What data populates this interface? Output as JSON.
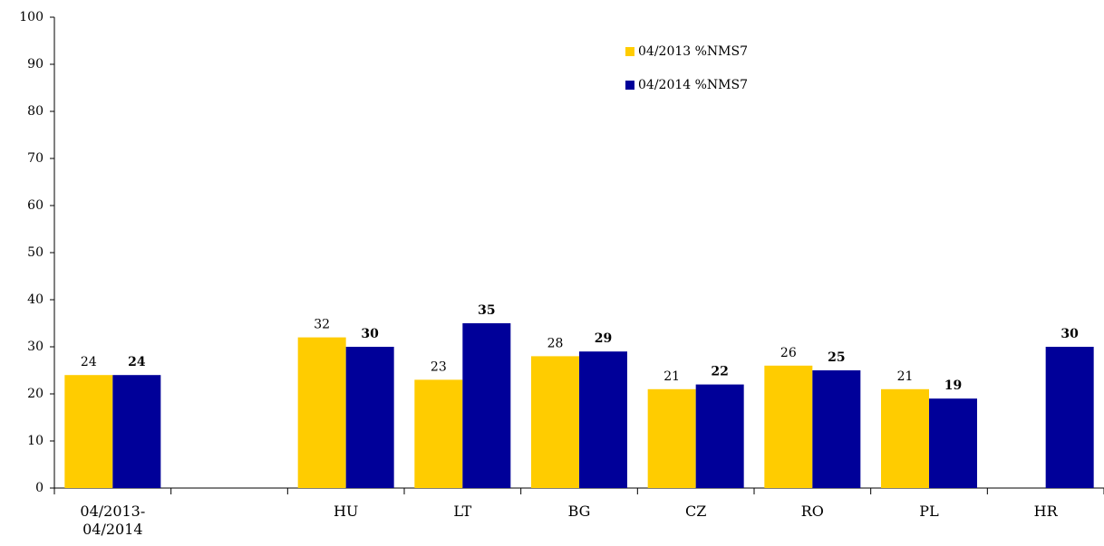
{
  "chart_data": {
    "type": "bar",
    "categories": [
      "04/2013-04/2014",
      null,
      "HU",
      "LT",
      "BG",
      "CZ",
      "RO",
      "PL",
      "HR"
    ],
    "series": [
      {
        "name": "04/2013 %NMS7",
        "color": "#ffcc00",
        "values": [
          24,
          null,
          32,
          23,
          28,
          21,
          26,
          21,
          null
        ]
      },
      {
        "name": "04/2014 %NMS7",
        "color": "#000099",
        "values": [
          24,
          null,
          30,
          35,
          29,
          22,
          25,
          19,
          30
        ]
      }
    ],
    "ylim": [
      0,
      100
    ],
    "yticks": [
      0,
      10,
      20,
      30,
      40,
      50,
      60,
      70,
      80,
      90,
      100
    ],
    "legend": "top-center"
  }
}
